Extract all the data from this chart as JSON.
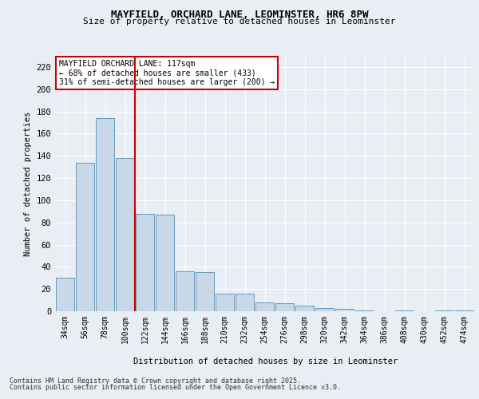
{
  "title1": "MAYFIELD, ORCHARD LANE, LEOMINSTER, HR6 8PW",
  "title2": "Size of property relative to detached houses in Leominster",
  "xlabel": "Distribution of detached houses by size in Leominster",
  "ylabel": "Number of detached properties",
  "categories": [
    "34sqm",
    "56sqm",
    "78sqm",
    "100sqm",
    "122sqm",
    "144sqm",
    "166sqm",
    "188sqm",
    "210sqm",
    "232sqm",
    "254sqm",
    "276sqm",
    "298sqm",
    "320sqm",
    "342sqm",
    "364sqm",
    "386sqm",
    "408sqm",
    "430sqm",
    "452sqm",
    "474sqm"
  ],
  "values": [
    30,
    134,
    174,
    138,
    88,
    87,
    36,
    35,
    16,
    16,
    8,
    7,
    5,
    3,
    2,
    1,
    0,
    1,
    0,
    1,
    1
  ],
  "bar_color": "#c8d8e8",
  "bar_edge_color": "#6699bb",
  "vline_color": "#cc0000",
  "annotation_text": "MAYFIELD ORCHARD LANE: 117sqm\n← 68% of detached houses are smaller (433)\n31% of semi-detached houses are larger (200) →",
  "annotation_box_color": "#ffffff",
  "annotation_box_edge": "#cc0000",
  "bg_color": "#e8eef4",
  "plot_bg_color": "#e8eef4",
  "footer1": "Contains HM Land Registry data © Crown copyright and database right 2025.",
  "footer2": "Contains public sector information licensed under the Open Government Licence v3.0.",
  "ylim": [
    0,
    230
  ],
  "yticks": [
    0,
    20,
    40,
    60,
    80,
    100,
    120,
    140,
    160,
    180,
    200,
    220
  ]
}
